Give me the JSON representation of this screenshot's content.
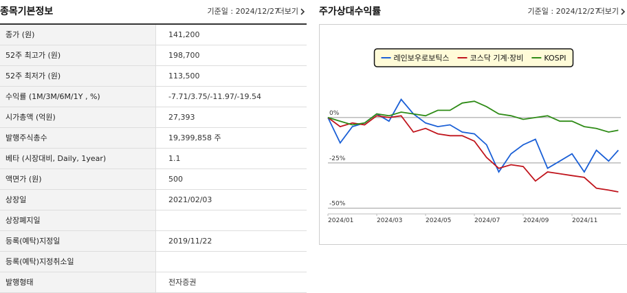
{
  "info_panel": {
    "title": "종목기본정보",
    "base_date": "기준일 : 2024/12/27",
    "more": "더보기",
    "rows": [
      [
        "종가 (원)",
        "141,200"
      ],
      [
        "52주 최고가 (원)",
        "198,700"
      ],
      [
        "52주 최저가 (원)",
        "113,500"
      ],
      [
        "수익률 (1M/3M/6M/1Y , %)",
        "-7.71/3.75/-11.97/-19.54"
      ],
      [
        "시가총액 (억원)",
        "27,393"
      ],
      [
        "발행주식총수",
        "19,399,858 주"
      ],
      [
        "베타 (시장대비, Daily, 1year)",
        "1.1"
      ],
      [
        "액면가 (원)",
        "500"
      ],
      [
        "상장일",
        "2021/02/03"
      ],
      [
        "상장폐지일"
      ],
      [
        "등록(예탁)지정일",
        "2019/11/22"
      ],
      [
        "등록(예탁)지정취소일"
      ],
      [
        "발행형태",
        "전자증권"
      ]
    ]
  },
  "chart_panel": {
    "title": "주가상대수익률",
    "base_date": "기준일 : 2024/12/27",
    "more": "더보기"
  },
  "chart_data": {
    "type": "line",
    "x": [
      1,
      1.5,
      2,
      2.5,
      3,
      3.5,
      4,
      4.5,
      5,
      5.5,
      6,
      6.5,
      7,
      7.5,
      8,
      8.5,
      9,
      9.5,
      10,
      10.5,
      11,
      11.5,
      12,
      12.5,
      12.9
    ],
    "series": [
      {
        "name": "레인보우로보틱스",
        "color": "#1a5fd6",
        "values": [
          0,
          -14,
          -5,
          -3,
          2,
          -2,
          10,
          2,
          -3,
          -5,
          -4,
          -8,
          -9,
          -15,
          -30,
          -20,
          -15,
          -12,
          -28,
          -24,
          -20,
          -30,
          -18,
          -24,
          -18
        ]
      },
      {
        "name": "코스닥 기계·장비",
        "color": "#c0141c",
        "values": [
          0,
          -5,
          -3,
          -4,
          1,
          0,
          1,
          -8,
          -6,
          -9,
          -10,
          -10,
          -13,
          -22,
          -28,
          -26,
          -27,
          -35,
          -30,
          -31,
          -32,
          -33,
          -39,
          -40,
          -41
        ]
      },
      {
        "name": "KOSPI",
        "color": "#2e8b16",
        "values": [
          0,
          -2,
          -4,
          -3,
          2,
          1,
          3,
          2,
          1,
          4,
          4,
          8,
          9,
          6,
          2,
          1,
          -1,
          0,
          1,
          -2,
          -2,
          -5,
          -6,
          -8,
          -7
        ]
      }
    ],
    "xlim": [
      1,
      13
    ],
    "xticks": [
      {
        "value": 1,
        "label": "2024/01"
      },
      {
        "value": 3,
        "label": "2024/03"
      },
      {
        "value": 5,
        "label": "2024/05"
      },
      {
        "value": 7,
        "label": "2024/07"
      },
      {
        "value": 9,
        "label": "2024/09"
      },
      {
        "value": 11,
        "label": "2024/11"
      }
    ],
    "ylim": [
      -52,
      25
    ],
    "yticks": [
      {
        "value": 0,
        "label": "0%"
      },
      {
        "value": -25,
        "label": "-25%"
      },
      {
        "value": -50,
        "label": "-50%"
      }
    ],
    "grid": true,
    "legend": "top"
  }
}
